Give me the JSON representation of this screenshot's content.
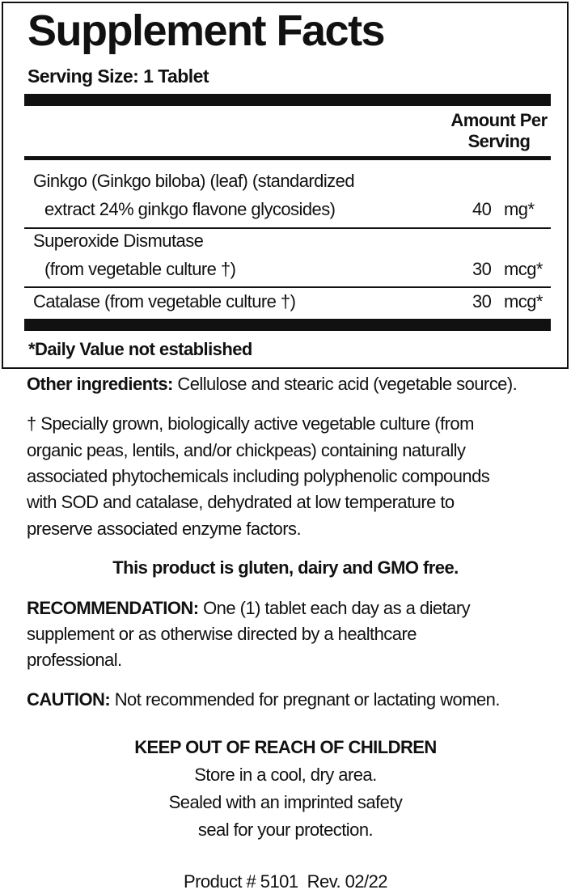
{
  "facts": {
    "title": "Supplement Facts",
    "serving_size": "Serving Size: 1 Tablet",
    "amount_header_1": "Amount Per",
    "amount_header_2": "Serving",
    "rows": [
      {
        "lines": [
          "Ginkgo (Ginkgo biloba) (leaf) (standardized",
          "extract 24% ginkgo flavone glycosides)"
        ],
        "amount": "40",
        "unit": "mg*"
      },
      {
        "lines": [
          "Superoxide Dismutase",
          "(from vegetable culture †)"
        ],
        "amount": "30",
        "unit": "mcg*"
      },
      {
        "lines": [
          "Catalase (from vegetable culture †)"
        ],
        "amount": "30",
        "unit": "mcg*"
      }
    ],
    "footnote": "*Daily Value not established"
  },
  "other": {
    "label": "Other ingredients:",
    "text": " Cellulose and stearic acid (vegetable source)."
  },
  "dagger_note": [
    "† Specially grown, biologically active vegetable culture (from",
    "organic peas, lentils, and/or chickpeas) containing naturally",
    "associated phytochemicals including polyphenolic compounds",
    "with SOD and catalase, dehydrated at low temperature to",
    "preserve associated enzyme factors."
  ],
  "free_statement": "This product is gluten, dairy and GMO free.",
  "recommendation": {
    "label": "RECOMMENDATION:",
    "lines": [
      " One (1) tablet each day as a dietary",
      "supplement or as otherwise directed by a healthcare",
      "professional."
    ]
  },
  "caution": {
    "label": "CAUTION:",
    "text": " Not recommended for pregnant or lactating women."
  },
  "storage": {
    "heading": "KEEP OUT OF REACH OF CHILDREN",
    "lines": [
      "Store in a cool, dry area.",
      "Sealed with an imprinted safety",
      "seal for your protection."
    ]
  },
  "product": "Product # 5101  Rev. 02/22"
}
